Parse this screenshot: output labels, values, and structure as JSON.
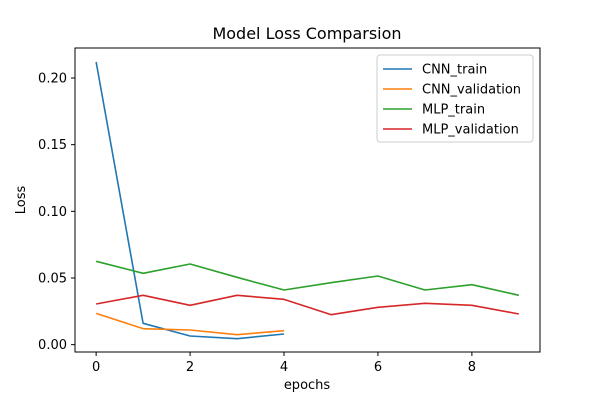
{
  "chart_data": {
    "type": "line",
    "title": "Model Loss Comparsion",
    "xlabel": "epochs",
    "ylabel": "Loss",
    "xlim": [
      -0.45,
      9.45
    ],
    "ylim": [
      -0.0055,
      0.2225
    ],
    "xticks": [
      "0",
      "2",
      "4",
      "6",
      "8"
    ],
    "yticks": [
      "0.00",
      "0.05",
      "0.10",
      "0.15",
      "0.20"
    ],
    "grid": false,
    "legend_position": "top-right",
    "series": [
      {
        "name": "CNN_train",
        "color": "#1f77b4",
        "x": [
          0,
          1,
          2,
          3,
          4
        ],
        "values": [
          0.212,
          0.016,
          0.0065,
          0.0045,
          0.008
        ]
      },
      {
        "name": "CNN_validation",
        "color": "#ff7f0e",
        "x": [
          0,
          1,
          2,
          3,
          4
        ],
        "values": [
          0.0235,
          0.012,
          0.011,
          0.0075,
          0.0105
        ]
      },
      {
        "name": "MLP_train",
        "color": "#2ca02c",
        "x": [
          0,
          1,
          2,
          3,
          4,
          5,
          6,
          7,
          8,
          9
        ],
        "values": [
          0.0625,
          0.0535,
          0.0605,
          0.0505,
          0.041,
          0.0465,
          0.0515,
          0.041,
          0.045,
          0.037
        ]
      },
      {
        "name": "MLP_validation",
        "color": "#d62728",
        "x": [
          0,
          1,
          2,
          3,
          4,
          5,
          6,
          7,
          8,
          9
        ],
        "values": [
          0.0305,
          0.037,
          0.0295,
          0.037,
          0.034,
          0.0225,
          0.028,
          0.031,
          0.0295,
          0.023
        ]
      }
    ]
  }
}
